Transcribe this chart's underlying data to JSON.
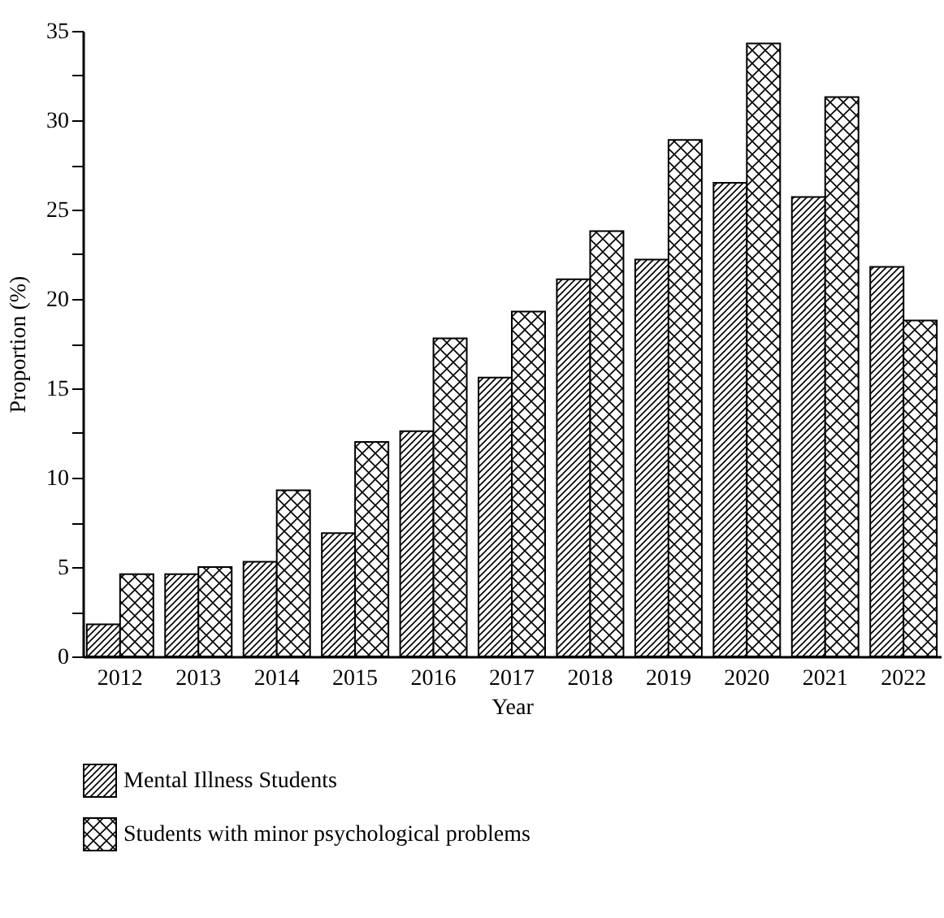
{
  "chart_data": {
    "type": "bar",
    "xlabel": "Year",
    "ylabel": "Proportion (%)",
    "categories": [
      "2012",
      "2013",
      "2014",
      "2015",
      "2016",
      "2017",
      "2018",
      "2019",
      "2020",
      "2021",
      "2022"
    ],
    "series": [
      {
        "name": "Mental Illness Students",
        "color": "#000000",
        "values": [
          1.8,
          4.6,
          5.3,
          6.9,
          12.6,
          15.6,
          21.1,
          22.2,
          26.5,
          25.7,
          21.8
        ]
      },
      {
        "name": "Students with minor psychological problems",
        "color": "#000000",
        "values": [
          4.6,
          5.0,
          9.3,
          12.0,
          17.8,
          19.3,
          23.8,
          28.9,
          34.3,
          31.3,
          18.8
        ]
      }
    ],
    "ylim": [
      0,
      35
    ],
    "yticks": [
      0,
      {
        "value": 2.5,
        "label": null
      },
      5,
      {
        "value": 7.5,
        "label": null
      },
      10,
      {
        "value": 12.5,
        "label": null
      },
      15,
      {
        "value": 17.5,
        "label": null
      },
      20,
      {
        "value": 22.5,
        "label": null
      },
      25,
      {
        "value": 27.5,
        "label": null
      },
      30,
      {
        "value": 32.5,
        "label": null
      },
      35
    ],
    "grid": false,
    "legend": "bottom left"
  }
}
